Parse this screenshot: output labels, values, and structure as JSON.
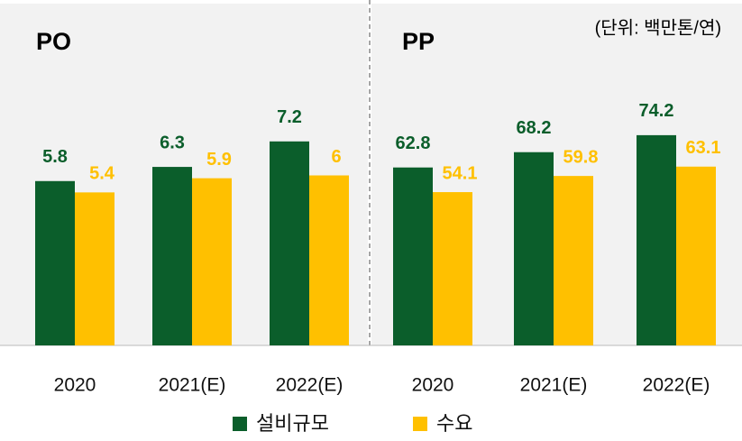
{
  "chart_data": [
    {
      "type": "bar",
      "title": "PO",
      "categories": [
        "2020",
        "2021(E)",
        "2022(E)"
      ],
      "series": [
        {
          "name": "설비규모",
          "color": "#0b5e2b",
          "values": [
            5.8,
            6.3,
            7.2
          ]
        },
        {
          "name": "수요",
          "color": "#ffc000",
          "values": [
            5.4,
            5.9,
            6.0
          ]
        }
      ],
      "ylim": [
        0,
        12
      ]
    },
    {
      "type": "bar",
      "title": "PP",
      "annotation": "(단위: 백만톤/연)",
      "categories": [
        "2020",
        "2021(E)",
        "2022(E)"
      ],
      "series": [
        {
          "color": "#0b5e2b",
          "values": [
            62.8,
            68.2,
            74.2
          ]
        },
        {
          "color": "#ffc000",
          "values": [
            54.1,
            59.8,
            63.1
          ]
        }
      ],
      "ylim": [
        0,
        120
      ]
    }
  ]
}
